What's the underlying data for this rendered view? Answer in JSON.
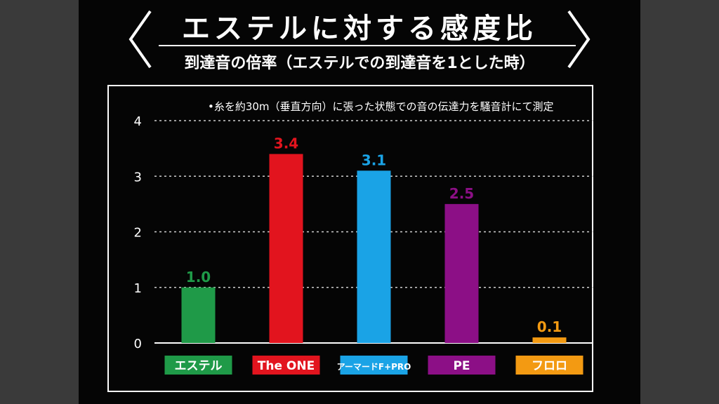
{
  "title": "エステルに対する感度比",
  "subtitle": "到達音の倍率（エステルでの到達音を1とした時）",
  "note": "•糸を約30m（垂直方向）に張った状態での音の伝達力を騒音計にて測定",
  "chart_data": {
    "type": "bar",
    "categories": [
      "エステル",
      "The ONE",
      "アーマードF+PRO",
      "PE",
      "フロロ"
    ],
    "values": [
      1.0,
      3.4,
      3.1,
      2.5,
      0.1
    ],
    "value_labels": [
      "1.0",
      "3.4",
      "3.1",
      "2.5",
      "0.1"
    ],
    "colors": [
      "#1f9a48",
      "#e2141e",
      "#1aa3e6",
      "#8c0f86",
      "#f39a12"
    ],
    "ylim": [
      0,
      4
    ],
    "yticks": [
      0,
      1,
      2,
      3,
      4
    ],
    "grid": true,
    "grid_style": "dashed",
    "legend": "none"
  }
}
